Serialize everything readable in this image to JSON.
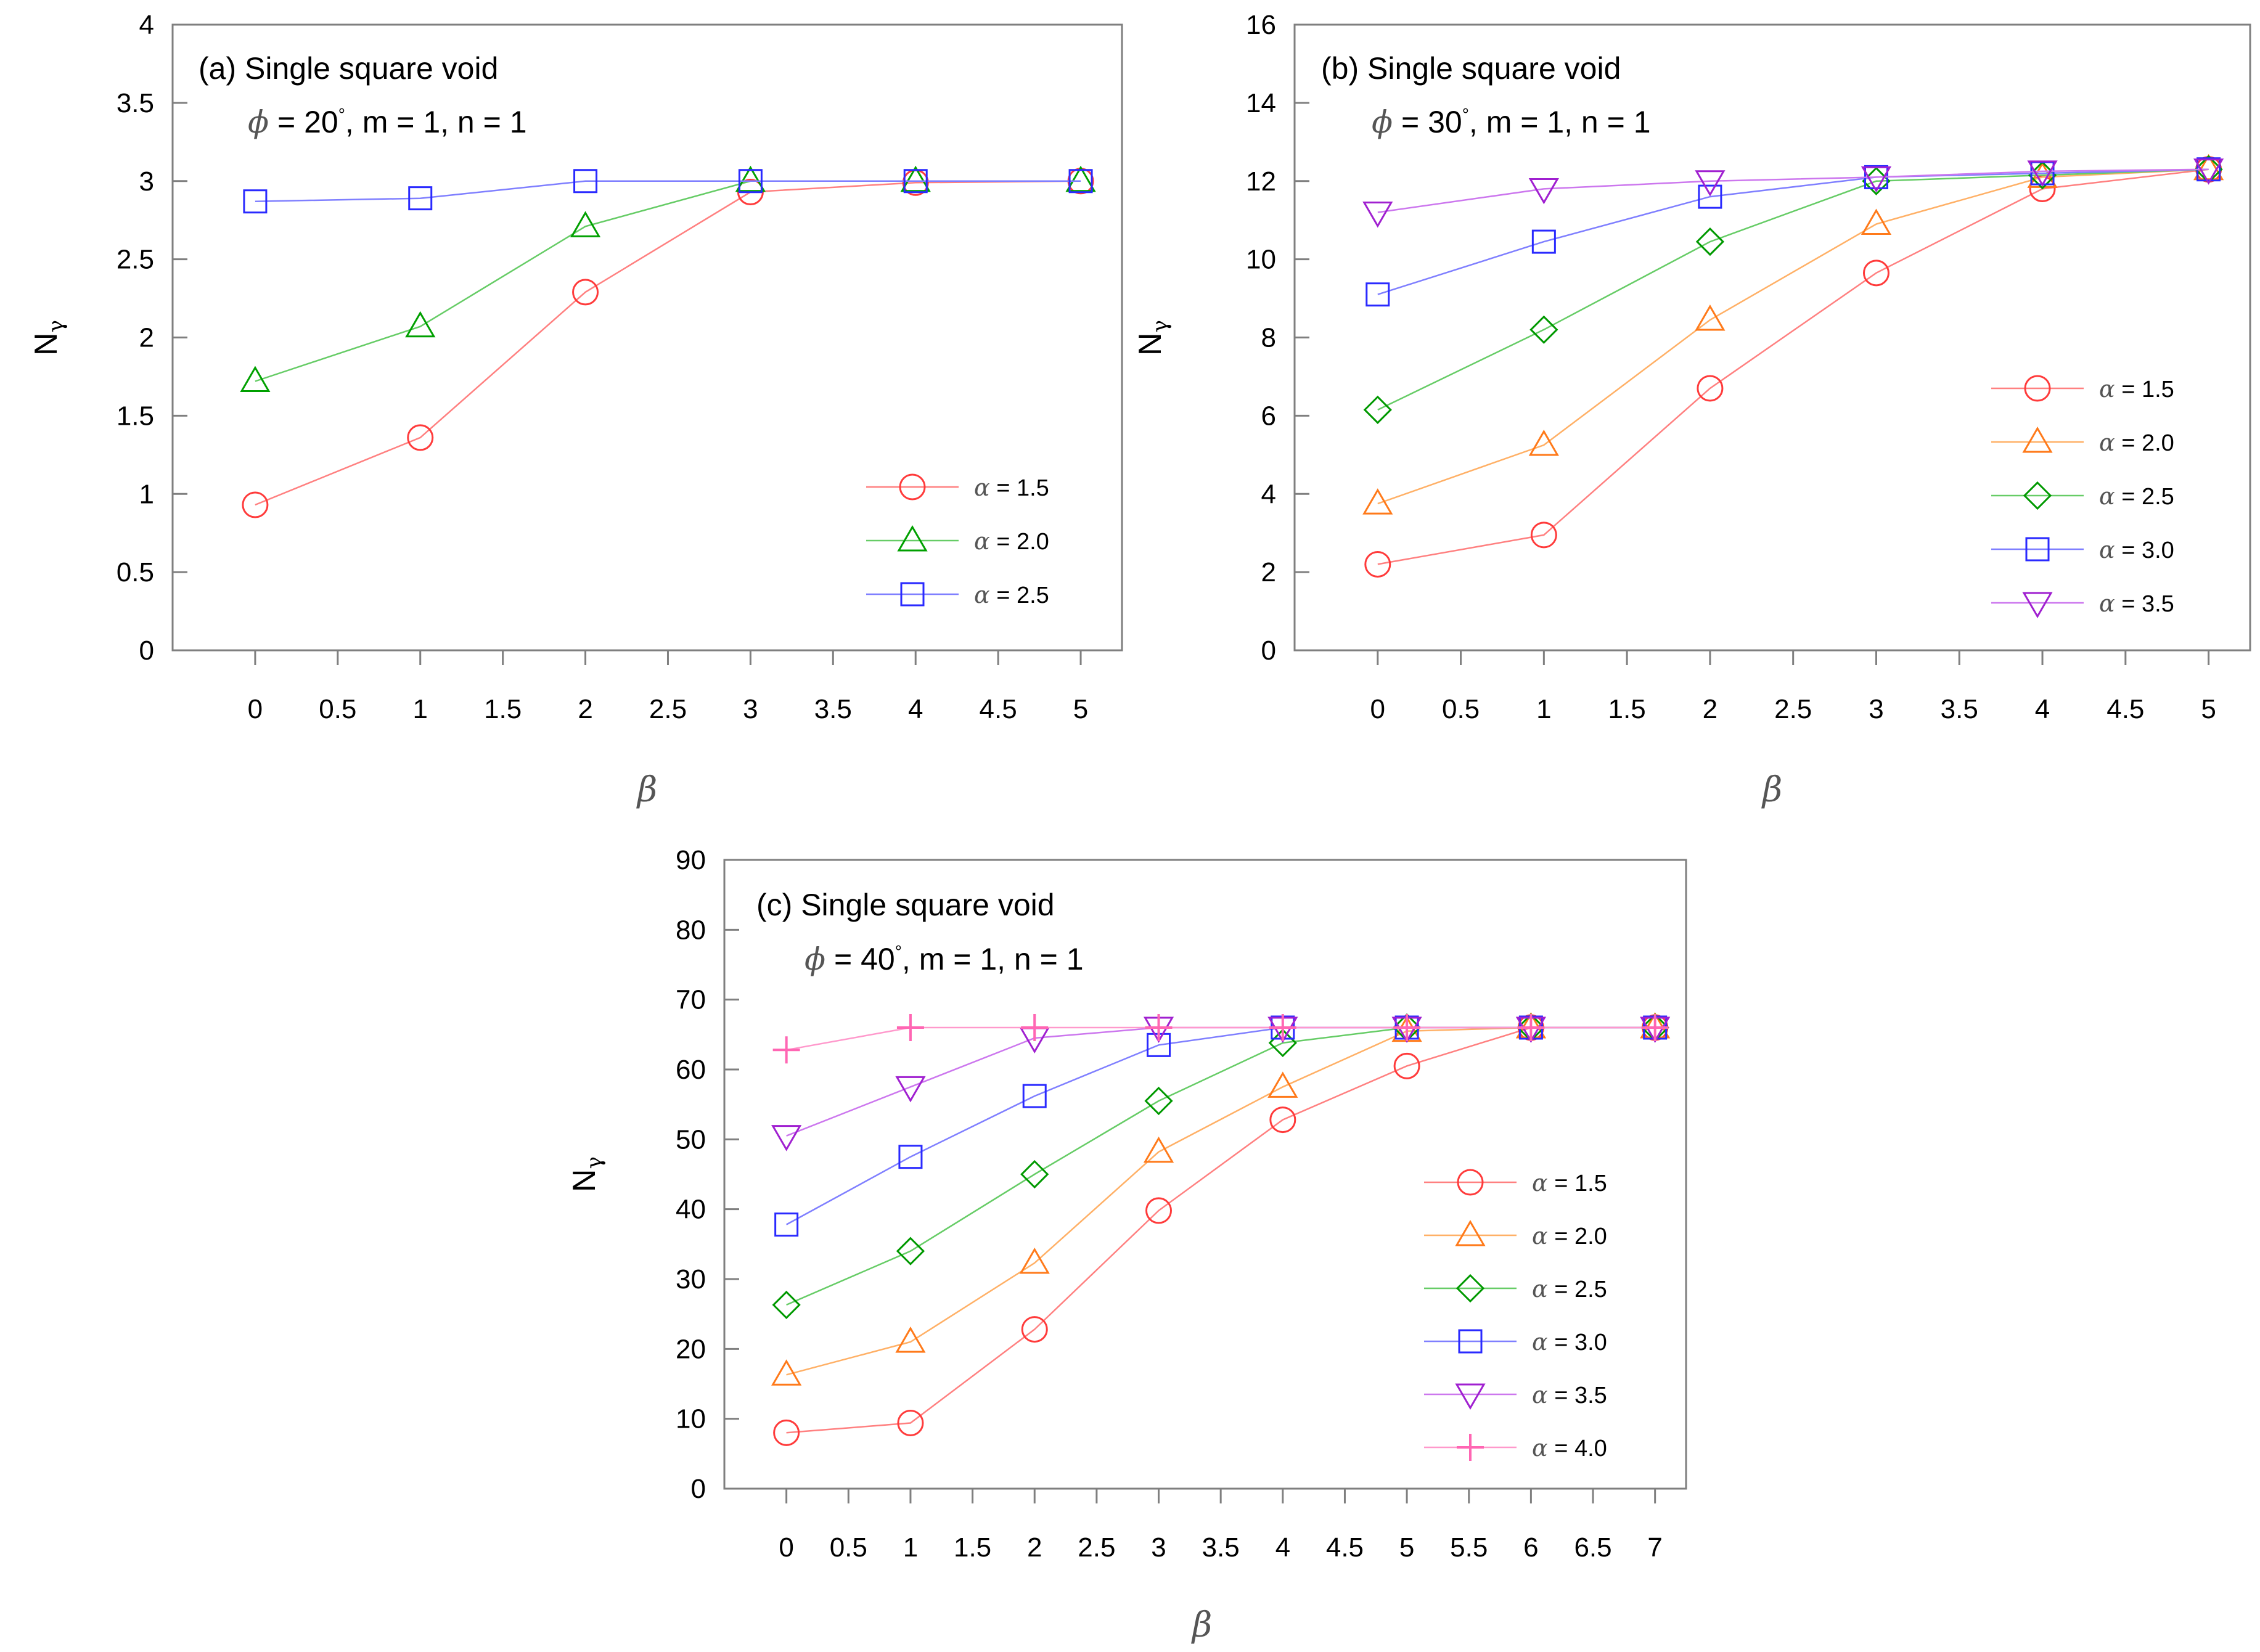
{
  "chart_data": [
    {
      "type": "line",
      "panel_id": "a",
      "title": "(a) Single square void",
      "subtitle_phi": "ϕ",
      "subtitle_rest": " = 20",
      "subtitle_deg": "°",
      "subtitle_tail": ", m = 1, n = 1",
      "xlabel": "β",
      "ylabel_main": "N",
      "ylabel_sub": "γ",
      "xlim": [
        -0.5,
        5.25
      ],
      "ylim": [
        0,
        4
      ],
      "xticks": [
        0,
        0.5,
        1,
        1.5,
        2,
        2.5,
        3,
        3.5,
        4,
        4.5,
        5
      ],
      "xticklabels": [
        "0",
        "0.5",
        "1",
        "1.5",
        "2",
        "2.5",
        "3",
        "3.5",
        "4",
        "4.5",
        "5"
      ],
      "yticks": [
        0,
        0.5,
        1,
        1.5,
        2,
        2.5,
        3,
        3.5,
        4
      ],
      "yticklabels": [
        "0",
        "0.5",
        "1",
        "1.5",
        "2",
        "2.5",
        "3",
        "3.5",
        "4"
      ],
      "legend_position": "bottom-right",
      "series": [
        {
          "name": "α = 1.5",
          "legend_symbol": "α",
          "legend_value": " = 1.5",
          "marker": "circle",
          "color": "#ff3b3b",
          "line_color": "#ff8080",
          "x": [
            0,
            1,
            2,
            3,
            4,
            5
          ],
          "y": [
            0.93,
            1.36,
            2.29,
            2.93,
            2.99,
            3.0
          ]
        },
        {
          "name": "α = 2.0",
          "legend_symbol": "α",
          "legend_value": " = 2.0",
          "marker": "triangle-up",
          "color": "#00a000",
          "line_color": "#66cc66",
          "x": [
            0,
            1,
            2,
            3,
            4,
            5
          ],
          "y": [
            1.72,
            2.07,
            2.71,
            3.0,
            3.0,
            3.0
          ]
        },
        {
          "name": "α = 2.5",
          "legend_symbol": "α",
          "legend_value": " = 2.5",
          "marker": "square",
          "color": "#2a2aff",
          "line_color": "#7f7fff",
          "x": [
            0,
            1,
            2,
            3,
            4,
            5
          ],
          "y": [
            2.87,
            2.89,
            3.0,
            3.0,
            3.0,
            3.0
          ]
        }
      ]
    },
    {
      "type": "line",
      "panel_id": "b",
      "title": "(b) Single square void",
      "subtitle_phi": "ϕ",
      "subtitle_rest": " = 30",
      "subtitle_deg": "°",
      "subtitle_tail": ", m = 1, n = 1",
      "xlabel": "β",
      "ylabel_main": "N",
      "ylabel_sub": "γ",
      "xlim": [
        -0.5,
        5.25
      ],
      "ylim": [
        0,
        16
      ],
      "xticks": [
        0,
        0.5,
        1,
        1.5,
        2,
        2.5,
        3,
        3.5,
        4,
        4.5,
        5
      ],
      "xticklabels": [
        "0",
        "0.5",
        "1",
        "1.5",
        "2",
        "2.5",
        "3",
        "3.5",
        "4",
        "4.5",
        "5"
      ],
      "yticks": [
        0,
        2,
        4,
        6,
        8,
        10,
        12,
        14,
        16
      ],
      "yticklabels": [
        "0",
        "2",
        "4",
        "6",
        "8",
        "10",
        "12",
        "14",
        "16"
      ],
      "legend_position": "right",
      "series": [
        {
          "name": "α = 1.5",
          "legend_symbol": "α",
          "legend_value": " = 1.5",
          "marker": "circle",
          "color": "#ff3b3b",
          "line_color": "#ff8080",
          "x": [
            0,
            1,
            2,
            3,
            4,
            5
          ],
          "y": [
            2.2,
            2.95,
            6.7,
            9.65,
            11.8,
            12.3
          ]
        },
        {
          "name": "α = 2.0",
          "legend_symbol": "α",
          "legend_value": " = 2.0",
          "marker": "triangle-up",
          "color": "#ff7a1a",
          "line_color": "#ffb066",
          "x": [
            0,
            1,
            2,
            3,
            4,
            5
          ],
          "y": [
            3.75,
            5.25,
            8.45,
            10.9,
            12.1,
            12.3
          ]
        },
        {
          "name": "α = 2.5",
          "legend_symbol": "α",
          "legend_value": " = 2.5",
          "marker": "diamond",
          "color": "#009900",
          "line_color": "#66cc66",
          "x": [
            0,
            1,
            2,
            3,
            4,
            5
          ],
          "y": [
            6.15,
            8.2,
            10.45,
            12.0,
            12.15,
            12.3
          ]
        },
        {
          "name": "α = 3.0",
          "legend_symbol": "α",
          "legend_value": " = 3.0",
          "marker": "square",
          "color": "#2a2aff",
          "line_color": "#7f7fff",
          "x": [
            0,
            1,
            2,
            3,
            4,
            5
          ],
          "y": [
            9.1,
            10.45,
            11.6,
            12.1,
            12.2,
            12.3
          ]
        },
        {
          "name": "α = 3.5",
          "legend_symbol": "α",
          "legend_value": " = 3.5",
          "marker": "triangle-down",
          "color": "#a020d0",
          "line_color": "#cc77ee",
          "x": [
            0,
            1,
            2,
            3,
            4,
            5
          ],
          "y": [
            11.2,
            11.8,
            12.0,
            12.1,
            12.25,
            12.3
          ]
        }
      ]
    },
    {
      "type": "line",
      "panel_id": "c",
      "title": "(c) Single square void",
      "subtitle_phi": "ϕ",
      "subtitle_rest": " = 40",
      "subtitle_deg": "°",
      "subtitle_tail": ", m = 1, n = 1",
      "xlabel": "β",
      "ylabel_main": "N",
      "ylabel_sub": "γ",
      "xlim": [
        -0.5,
        7.25
      ],
      "ylim": [
        0,
        90
      ],
      "xticks": [
        0,
        0.5,
        1,
        1.5,
        2,
        2.5,
        3,
        3.5,
        4,
        4.5,
        5,
        5.5,
        6,
        6.5,
        7
      ],
      "xticklabels": [
        "0",
        "0.5",
        "1",
        "1.5",
        "2",
        "2.5",
        "3",
        "3.5",
        "4",
        "4.5",
        "5",
        "5.5",
        "6",
        "6.5",
        "7"
      ],
      "yticks": [
        0,
        10,
        20,
        30,
        40,
        50,
        60,
        70,
        80,
        90
      ],
      "yticklabels": [
        "0",
        "10",
        "20",
        "30",
        "40",
        "50",
        "60",
        "70",
        "80",
        "90"
      ],
      "legend_position": "right",
      "series": [
        {
          "name": "α = 1.5",
          "legend_symbol": "α",
          "legend_value": " = 1.5",
          "marker": "circle",
          "color": "#ff3b3b",
          "line_color": "#ff8080",
          "x": [
            0,
            1,
            2,
            3,
            4,
            5,
            6,
            7
          ],
          "y": [
            8.0,
            9.4,
            22.8,
            39.8,
            52.8,
            60.5,
            66.0,
            66.0
          ]
        },
        {
          "name": "α = 2.0",
          "legend_symbol": "α",
          "legend_value": " = 2.0",
          "marker": "triangle-up",
          "color": "#ff7a1a",
          "line_color": "#ffb066",
          "x": [
            0,
            1,
            2,
            3,
            4,
            5,
            6,
            7
          ],
          "y": [
            16.3,
            21.0,
            32.3,
            48.2,
            57.5,
            65.5,
            66.0,
            66.0
          ]
        },
        {
          "name": "α = 2.5",
          "legend_symbol": "α",
          "legend_value": " = 2.5",
          "marker": "diamond",
          "color": "#009900",
          "line_color": "#66cc66",
          "x": [
            0,
            1,
            2,
            3,
            4,
            5,
            6,
            7
          ],
          "y": [
            26.3,
            34.0,
            45.0,
            55.5,
            63.8,
            66.0,
            66.0,
            66.0
          ]
        },
        {
          "name": "α = 3.0",
          "legend_symbol": "α",
          "legend_value": " = 3.0",
          "marker": "square",
          "color": "#2a2aff",
          "line_color": "#7f7fff",
          "x": [
            0,
            1,
            2,
            3,
            4,
            5,
            6,
            7
          ],
          "y": [
            37.8,
            47.5,
            56.2,
            63.5,
            66.0,
            66.0,
            66.0,
            66.0
          ]
        },
        {
          "name": "α = 3.5",
          "legend_symbol": "α",
          "legend_value": " = 3.5",
          "marker": "triangle-down",
          "color": "#a020d0",
          "line_color": "#cc77ee",
          "x": [
            0,
            1,
            2,
            3,
            4,
            5,
            6,
            7
          ],
          "y": [
            50.5,
            57.5,
            64.5,
            66.0,
            66.0,
            66.0,
            66.0,
            66.0
          ]
        },
        {
          "name": "α = 4.0",
          "legend_symbol": "α",
          "legend_value": " = 4.0",
          "marker": "plus",
          "color": "#ff66b3",
          "line_color": "#ff99cc",
          "x": [
            0,
            1,
            2,
            3,
            4,
            5,
            6,
            7
          ],
          "y": [
            62.8,
            66.0,
            66.0,
            66.0,
            66.0,
            66.0,
            66.0,
            66.0
          ]
        }
      ]
    }
  ]
}
